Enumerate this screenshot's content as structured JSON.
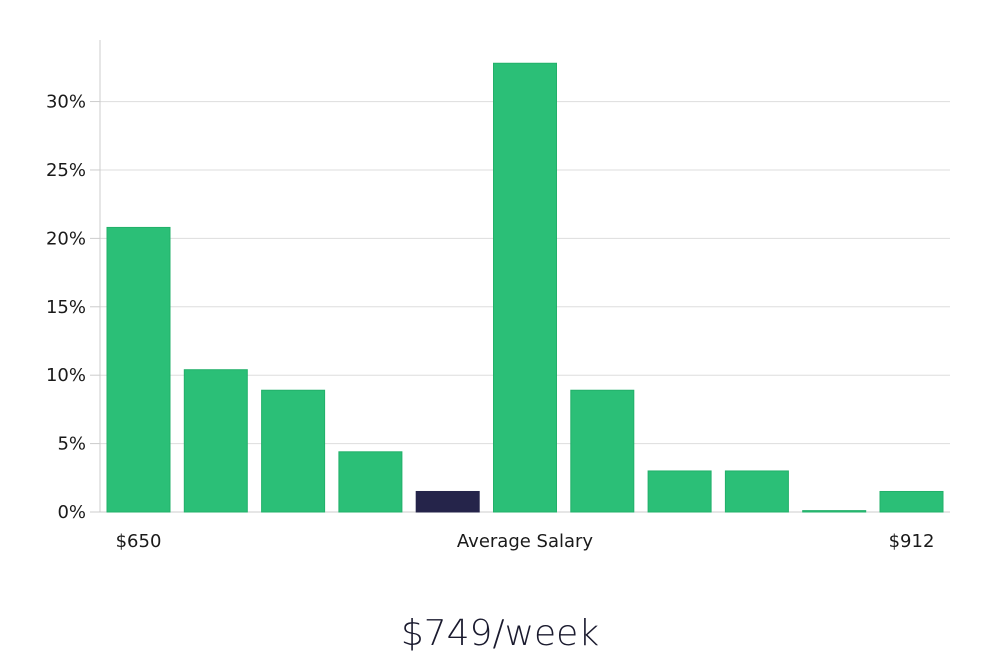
{
  "chart_data": {
    "type": "bar",
    "values": [
      20.8,
      10.4,
      8.9,
      4.4,
      1.5,
      32.8,
      8.9,
      3.0,
      3.0,
      0.1,
      1.5
    ],
    "highlight_index": 4,
    "y_ticks": [
      "0%",
      "5%",
      "10%",
      "15%",
      "20%",
      "25%",
      "30%"
    ],
    "y_tick_values": [
      0,
      5,
      10,
      15,
      20,
      25,
      30
    ],
    "ylim": [
      0,
      34.5
    ],
    "x_labels": [
      {
        "bar_index": 0,
        "text": "$650"
      },
      {
        "bar_index": 5,
        "text": "Average Salary"
      },
      {
        "bar_index": 10,
        "text": "$912"
      }
    ],
    "grid": true,
    "colors": {
      "bar": "#2bbf77",
      "bar_edge": "#22b06a",
      "highlight": "#25244a",
      "grid": "#dddddd",
      "axis": "#cccccc"
    }
  },
  "summary": {
    "salary_text": "$749/week"
  }
}
